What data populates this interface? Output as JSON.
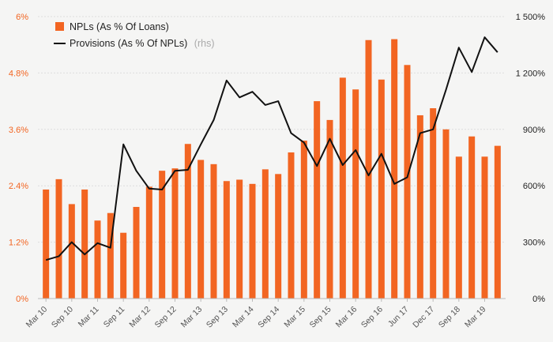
{
  "colors": {
    "bar": "#f26522",
    "line": "#111111",
    "left_axis": "#f26522",
    "right_axis": "#222222",
    "grid": "#dddddd"
  },
  "legend": {
    "npl_label": "NPLs (As % Of Loans)",
    "provisions_label": "Provisions (As % Of NPLs)",
    "provisions_note": "(rhs)"
  },
  "chart_data": {
    "type": "bar",
    "legend_position": "top-left",
    "grid": true,
    "x_tick_labels": [
      "Mar 10",
      "Sep 10",
      "Mar 11",
      "Sep 11",
      "Mar 12",
      "Sep 12",
      "Mar 13",
      "Sep 13",
      "Mar 14",
      "Sep 14",
      "Mar 15",
      "Sep 15",
      "Mar 16",
      "Sep 16",
      "Jun 17",
      "Dec 17",
      "Sep 18",
      "Mar 19"
    ],
    "y_left": {
      "ylim": [
        0,
        6
      ],
      "ticks": [
        0,
        1.2,
        2.4,
        3.6,
        4.8,
        6
      ],
      "tick_labels": [
        "0%",
        "1.2%",
        "2.4%",
        "3.6%",
        "4.8%",
        "6%"
      ]
    },
    "y_right": {
      "ylim": [
        0,
        1500
      ],
      "ticks": [
        0,
        300,
        600,
        900,
        1200,
        1500
      ],
      "tick_labels": [
        "0%",
        "300%",
        "600%",
        "900%",
        "1 200%",
        "1 500%"
      ]
    },
    "series": [
      {
        "name": "NPLs (As % Of Loans)",
        "type": "bar",
        "axis": "left",
        "values": [
          2.32,
          2.54,
          2.01,
          2.32,
          1.66,
          1.82,
          1.4,
          1.95,
          2.38,
          2.72,
          2.77,
          3.29,
          2.95,
          2.86,
          2.5,
          2.53,
          2.44,
          2.75,
          2.65,
          3.11,
          3.36,
          4.2,
          3.8,
          4.7,
          4.45,
          5.5,
          4.66,
          5.52,
          4.97,
          3.9,
          4.05,
          3.6,
          3.02,
          3.45,
          3.02,
          3.25
        ]
      },
      {
        "name": "Provisions (As % Of NPLs)",
        "type": "line",
        "axis": "right",
        "values": [
          205,
          225,
          300,
          235,
          295,
          270,
          820,
          680,
          585,
          580,
          680,
          685,
          820,
          950,
          1160,
          1070,
          1100,
          1030,
          1050,
          880,
          830,
          705,
          850,
          710,
          790,
          655,
          770,
          610,
          645,
          880,
          900,
          1110,
          1335,
          1205,
          1390,
          1310
        ]
      }
    ]
  }
}
